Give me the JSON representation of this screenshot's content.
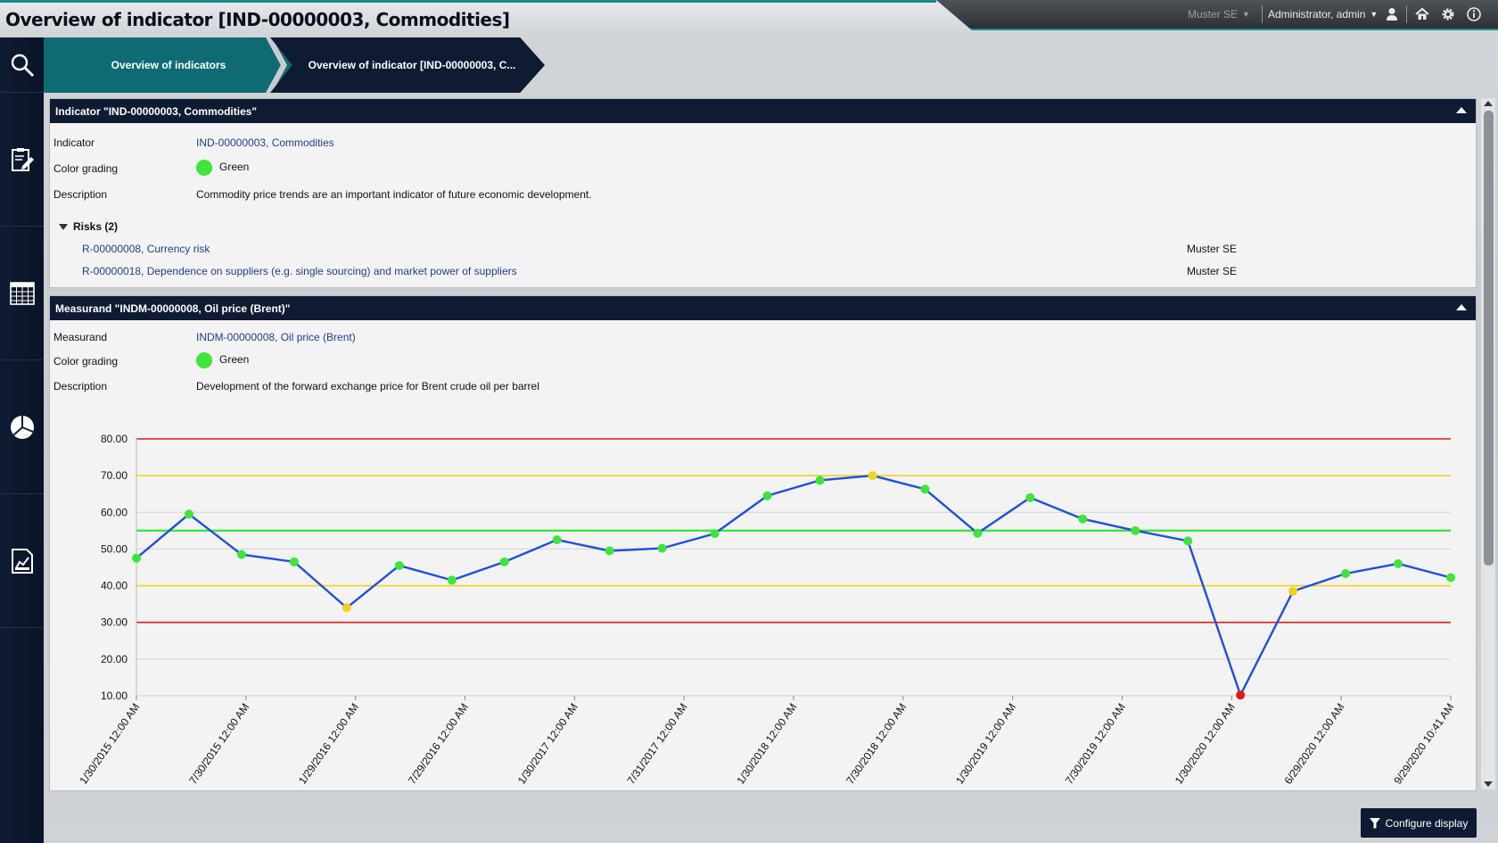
{
  "app": {
    "title": "Overview of indicator [IND-00000003, Commodities]"
  },
  "topbar": {
    "company": "Muster SE",
    "user": "Administrator, admin",
    "icons": [
      "user-icon",
      "home-icon",
      "gear-icon",
      "info-icon"
    ]
  },
  "nav": {
    "items": [
      "search-icon",
      "clipboard-edit-icon",
      "calendar-grid-icon",
      "pie-chart-icon",
      "report-chart-icon"
    ]
  },
  "breadcrumb": [
    {
      "label": "Overview of indicators"
    },
    {
      "label": "Overview of indicator [IND-00000003, C..."
    }
  ],
  "indicator_panel": {
    "title": "Indicator \"IND-00000003, Commodities\"",
    "fields": {
      "indicator_label": "Indicator",
      "indicator_value": "IND-00000003, Commodities",
      "color_label": "Color grading",
      "color_value": "Green",
      "description_label": "Description",
      "description_value": "Commodity price trends are an important indicator of future economic development."
    },
    "risks_header": "Risks (2)",
    "risks": [
      {
        "name": "R-00000008, Currency risk",
        "company": "Muster SE"
      },
      {
        "name": "R-00000018, Dependence on suppliers (e.g. single sourcing) and market power of suppliers",
        "company": "Muster SE"
      }
    ]
  },
  "measurand_panel": {
    "title": "Measurand \"INDM-00000008, Oil price (Brent)\"",
    "fields": {
      "measurand_label": "Measurand",
      "measurand_value": "INDM-00000008, Oil price (Brent)",
      "color_label": "Color grading",
      "color_value": "Green",
      "description_label": "Description",
      "description_value": "Development of the forward exchange price for Brent crude oil per barrel"
    }
  },
  "colors": {
    "green": "#3ee53a",
    "yellow": "#f2d21b",
    "red": "#e01b1b",
    "line": "#1f4fe0",
    "navy": "#0f1b33",
    "teal": "#0e6b73"
  },
  "configure_button": {
    "label": "Configure display"
  },
  "chart_data": {
    "type": "line",
    "title": "",
    "xlabel": "",
    "ylabel": "",
    "ylim": [
      10,
      80
    ],
    "yticks": [
      "80.00",
      "70.00",
      "60.00",
      "50.00",
      "40.00",
      "30.00",
      "20.00",
      "10.00"
    ],
    "x_tick_labels": [
      "1/30/2015 12:00 AM",
      "7/30/2015 12:00 AM",
      "1/29/2016 12:00 AM",
      "7/29/2016 12:00 AM",
      "1/30/2017 12:00 AM",
      "7/31/2017 12:00 AM",
      "1/30/2018 12:00 AM",
      "7/30/2018 12:00 AM",
      "1/30/2019 12:00 AM",
      "7/30/2019 12:00 AM",
      "1/30/2020 12:00 AM",
      "6/29/2020 12:00 AM",
      "9/29/2020 10:41 AM"
    ],
    "thresholds": [
      {
        "value": 80,
        "color": "red"
      },
      {
        "value": 70,
        "color": "yellow"
      },
      {
        "value": 55,
        "color": "green"
      },
      {
        "value": 40,
        "color": "yellow"
      },
      {
        "value": 30,
        "color": "red"
      }
    ],
    "series": [
      {
        "values": [
          47.5,
          59.5,
          48.5,
          46.5,
          34,
          45.5,
          41.5,
          46.5,
          52.5,
          49.5,
          50.2,
          54.2,
          64.5,
          68.7,
          70,
          66.3,
          54.3,
          64,
          58.2,
          55,
          52.2,
          10.2,
          38.5,
          43.3,
          46,
          42.2
        ],
        "status": [
          "green",
          "green",
          "green",
          "green",
          "yellow",
          "green",
          "green",
          "green",
          "green",
          "green",
          "green",
          "green",
          "green",
          "green",
          "yellow",
          "green",
          "green",
          "green",
          "green",
          "green",
          "green",
          "red",
          "yellow",
          "green",
          "green",
          "green"
        ]
      }
    ]
  }
}
